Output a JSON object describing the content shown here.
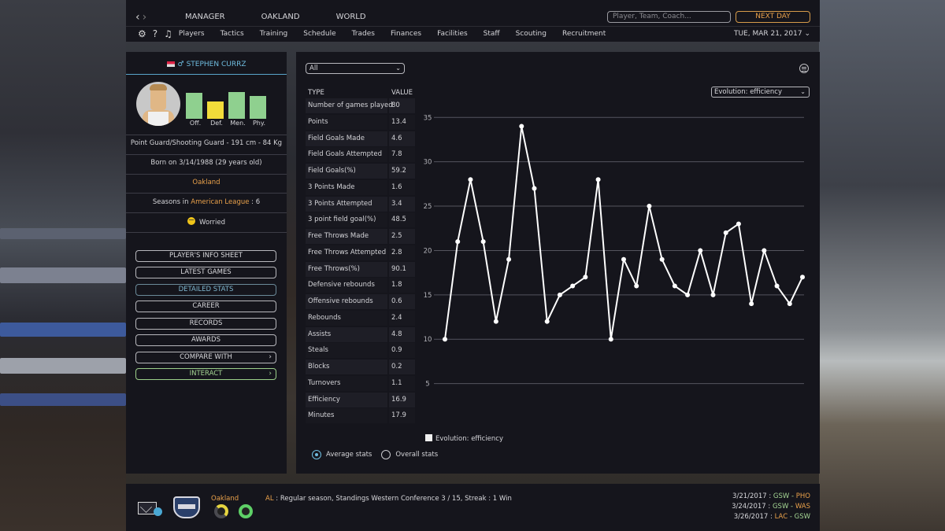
{
  "nav": {
    "back_arrow": "‹",
    "forward_arrow": "›",
    "main": [
      "MANAGER",
      "OAKLAND",
      "WORLD"
    ],
    "search_placeholder": "Player, Team, Coach...",
    "next_day": "NEXT DAY",
    "sub": [
      "Players",
      "Tactics",
      "Training",
      "Schedule",
      "Trades",
      "Finances",
      "Facilities",
      "Staff",
      "Scouting",
      "Recruitment"
    ],
    "help": "?",
    "date": "TUE, MAR 21, 2017"
  },
  "player": {
    "name": "STEPHEN CURRZ",
    "gender_symbol": "♂",
    "ratings": [
      {
        "label": "Off.",
        "level": 0.82,
        "color": "#8fd08f"
      },
      {
        "label": "Def.",
        "level": 0.55,
        "color": "#f2dc3a"
      },
      {
        "label": "Men.",
        "level": 0.85,
        "color": "#8fd08f"
      },
      {
        "label": "Phy.",
        "level": 0.72,
        "color": "#8fd08f"
      }
    ],
    "position_line": "Point Guard/Shooting Guard - 191 cm - 84 Kg",
    "born_line": "Born on 3/14/1988 (29 years old)",
    "team": "Oakland",
    "seasons_prefix": "Seasons in ",
    "seasons_league": "American League",
    "seasons_suffix": " : 6",
    "mood": "Worried"
  },
  "menu": {
    "buttons": [
      "PLAYER'S INFO SHEET",
      "LATEST GAMES",
      "DETAILED STATS",
      "CAREER",
      "RECORDS",
      "AWARDS",
      "COMPARE WITH",
      "INTERACT"
    ],
    "active": "DETAILED STATS"
  },
  "stats": {
    "filter": "All",
    "col_type": "TYPE",
    "col_value": "VALUE",
    "rows": [
      {
        "type": "Number of games played",
        "value": "80"
      },
      {
        "type": "Points",
        "value": "13.4"
      },
      {
        "type": "Field Goals Made",
        "value": "4.6"
      },
      {
        "type": "Field Goals Attempted",
        "value": "7.8"
      },
      {
        "type": "Field Goals(%)",
        "value": "59.2"
      },
      {
        "type": "3 Points Made",
        "value": "1.6"
      },
      {
        "type": "3 Points Attempted",
        "value": "3.4"
      },
      {
        "type": "3 point field goal(%)",
        "value": "48.5"
      },
      {
        "type": "Free Throws Made",
        "value": "2.5"
      },
      {
        "type": "Free Throws Attempted",
        "value": "2.8"
      },
      {
        "type": "Free Throws(%)",
        "value": "90.1"
      },
      {
        "type": "Defensive rebounds",
        "value": "1.8"
      },
      {
        "type": "Offensive rebounds",
        "value": "0.6"
      },
      {
        "type": "Rebounds",
        "value": "2.4"
      },
      {
        "type": "Assists",
        "value": "4.8"
      },
      {
        "type": "Steals",
        "value": "0.9"
      },
      {
        "type": "Blocks",
        "value": "0.2"
      },
      {
        "type": "Turnovers",
        "value": "1.1"
      },
      {
        "type": "Efficiency",
        "value": "16.9"
      },
      {
        "type": "Minutes",
        "value": "17.9"
      }
    ],
    "evolution_select": "Evolution: efficiency",
    "radio_average": "Average stats",
    "radio_overall": "Overall stats"
  },
  "chart_data": {
    "type": "line",
    "series": [
      {
        "name": "Evolution: efficiency",
        "values": [
          10,
          21,
          28,
          21,
          12,
          19,
          34,
          27,
          12,
          15,
          16,
          17,
          28,
          10,
          19,
          16,
          25,
          19,
          16,
          15,
          20,
          15,
          22,
          23,
          14,
          20,
          16,
          14,
          17
        ]
      }
    ],
    "x": [
      1,
      2,
      3,
      4,
      5,
      6,
      7,
      8,
      9,
      10,
      11,
      12,
      13,
      14,
      15,
      16,
      17,
      18,
      19,
      20,
      21,
      22,
      23,
      24,
      25,
      26,
      27,
      28,
      29
    ],
    "yticks": [
      5,
      10,
      15,
      20,
      25,
      30,
      35
    ],
    "ylim": [
      0,
      36
    ],
    "grid": true,
    "legend": "bottom",
    "line_color": "#ffffff"
  },
  "bottom": {
    "team": "Oakland",
    "league_tag": "AL",
    "league_msg": " : Regular season, Standings Western Conference 3 / 15, Streak : 1 Win",
    "games": [
      {
        "date": "3/21/2017 : ",
        "home": "GSW",
        "sep": " - ",
        "away": "PHO"
      },
      {
        "date": "3/24/2017 : ",
        "home": "GSW",
        "sep": " - ",
        "away": "WAS"
      },
      {
        "date": "3/26/2017 : ",
        "home": "LAC",
        "sep": " - ",
        "away": "GSW"
      }
    ]
  }
}
